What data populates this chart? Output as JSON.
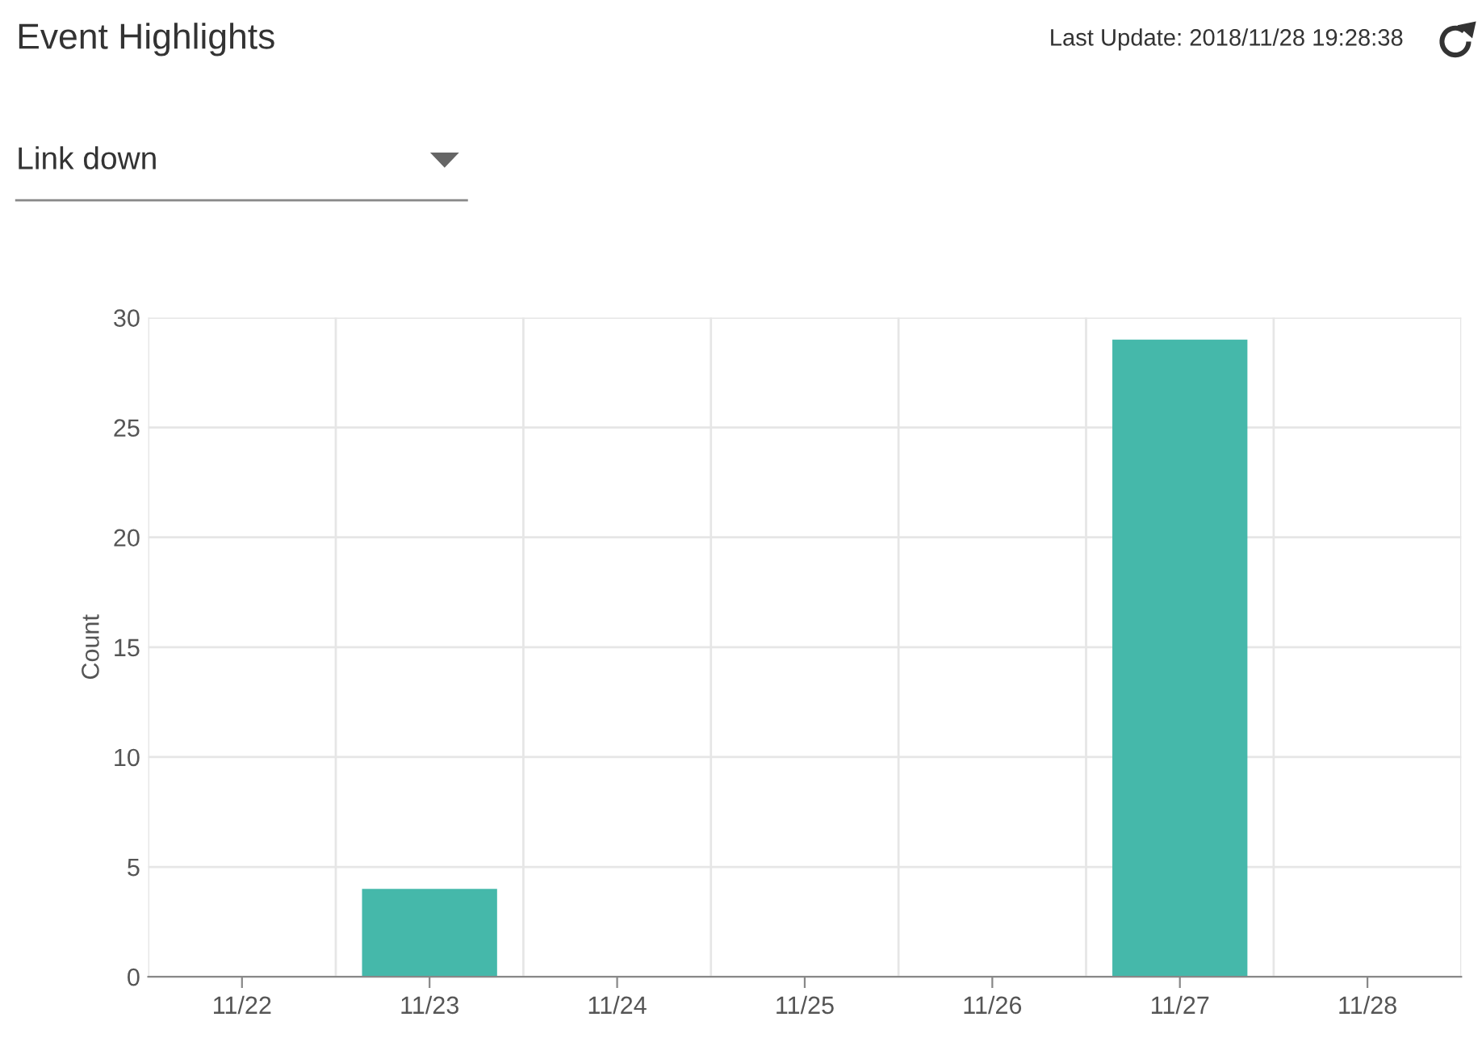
{
  "chart_data": {
    "type": "bar",
    "title": "Event Highlights",
    "annotations": [
      "Last Update: 2018/11/28 19:28:38",
      "Link down"
    ],
    "ylabel": "Count",
    "categories": [
      "11/22",
      "11/23",
      "11/24",
      "11/25",
      "11/26",
      "11/27",
      "11/28"
    ],
    "values": [
      0,
      4,
      0,
      0,
      0,
      29,
      0
    ],
    "color": "#45b8aa",
    "ylim": [
      0,
      30
    ],
    "yticks": [
      0,
      5,
      10,
      15,
      20,
      25,
      30
    ],
    "grid": true,
    "legend": false
  }
}
